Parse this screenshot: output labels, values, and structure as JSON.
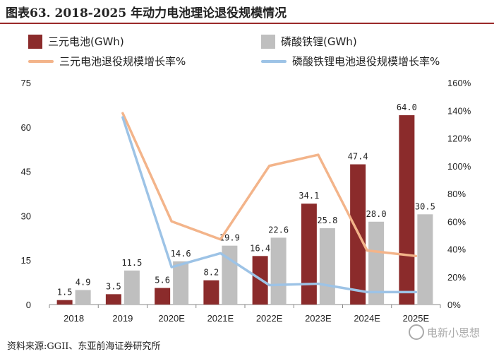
{
  "header": {
    "title": "图表63. 2018-2025 年动力电池理论退役规模情况"
  },
  "legend": {
    "items": [
      {
        "label": "三元电池(GWh)",
        "color": "#8b2b2b",
        "kind": "bar"
      },
      {
        "label": "磷酸铁锂(GWh)",
        "color": "#bfbfbf",
        "kind": "bar"
      },
      {
        "label": "三元电池退役规模增长率%",
        "color": "#f3b48a",
        "kind": "line"
      },
      {
        "label": "磷酸铁锂电池退役规模增长率%",
        "color": "#9dc3e6",
        "kind": "line"
      }
    ]
  },
  "chart_data": {
    "type": "bar",
    "categories": [
      "2018",
      "2019",
      "2020E",
      "2021E",
      "2022E",
      "2023E",
      "2024E",
      "2025E"
    ],
    "series": [
      {
        "name": "三元电池(GWh)",
        "type": "bar",
        "axis": "left",
        "color": "#8b2b2b",
        "values": [
          1.5,
          3.5,
          5.6,
          8.2,
          16.4,
          34.1,
          47.4,
          64.0
        ],
        "labels": [
          "1.5",
          "3.5",
          "5.6",
          "8.2",
          "16.4",
          "34.1",
          "47.4",
          "64.0"
        ]
      },
      {
        "name": "磷酸铁锂(GWh)",
        "type": "bar",
        "axis": "left",
        "color": "#bfbfbf",
        "values": [
          4.9,
          11.5,
          14.6,
          19.9,
          22.6,
          25.8,
          28.0,
          30.5
        ],
        "labels": [
          "4.9",
          "11.5",
          "14.6",
          "19.9",
          "22.6",
          "25.8",
          "28.0",
          "30.5"
        ]
      },
      {
        "name": "三元电池退役规模增长率%",
        "type": "line",
        "axis": "right",
        "color": "#f3b48a",
        "values": [
          null,
          138,
          60,
          47,
          100,
          108,
          39,
          35
        ]
      },
      {
        "name": "磷酸铁锂电池退役规模增长率%",
        "type": "line",
        "axis": "right",
        "color": "#9dc3e6",
        "values": [
          null,
          135,
          27,
          37,
          14,
          15,
          9,
          9
        ]
      }
    ],
    "ylim_left": [
      0,
      75
    ],
    "yticks_left": [
      "0",
      "15",
      "30",
      "45",
      "60",
      "75"
    ],
    "ylim_right": [
      0,
      160
    ],
    "yticks_right": [
      "0%",
      "20%",
      "40%",
      "60%",
      "80%",
      "100%",
      "120%",
      "140%",
      "160%"
    ],
    "grid": false
  },
  "footer": {
    "source": "资料来源:GGII、东亚前海证券研究所",
    "watermark": "电新小思想"
  }
}
